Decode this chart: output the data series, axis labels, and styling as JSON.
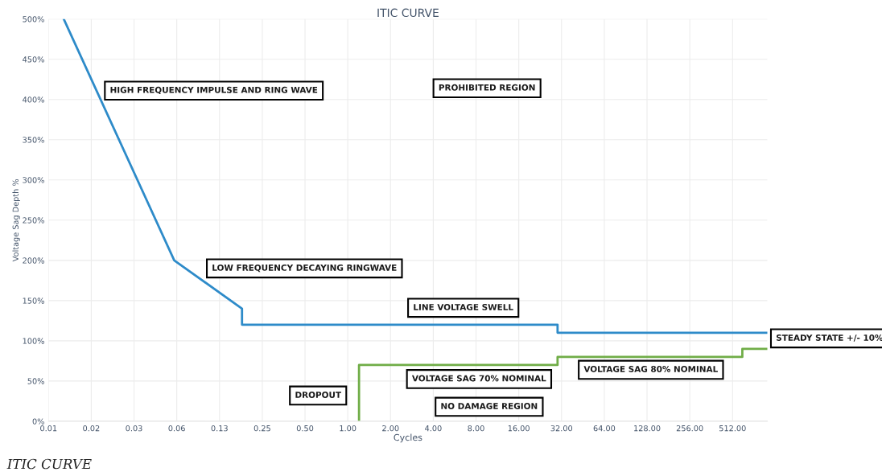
{
  "chart_data": {
    "type": "line",
    "title": "ITIC CURVE",
    "xlabel": "Cycles",
    "ylabel": "Voltage Sag Depth %",
    "log": "x",
    "xlim": [
      0.0078125,
      900
    ],
    "xticks": [
      {
        "value": 0.0078125,
        "label": "0.01"
      },
      {
        "value": 0.015625,
        "label": "0.02"
      },
      {
        "value": 0.03125,
        "label": "0.03"
      },
      {
        "value": 0.0625,
        "label": "0.06"
      },
      {
        "value": 0.125,
        "label": "0.13"
      },
      {
        "value": 0.25,
        "label": "0.25"
      },
      {
        "value": 0.5,
        "label": "0.50"
      },
      {
        "value": 1,
        "label": "1.00"
      },
      {
        "value": 2,
        "label": "2.00"
      },
      {
        "value": 4,
        "label": "4.00"
      },
      {
        "value": 8,
        "label": "8.00"
      },
      {
        "value": 16,
        "label": "16.00"
      },
      {
        "value": 32,
        "label": "32.00"
      },
      {
        "value": 64,
        "label": "64.00"
      },
      {
        "value": 128,
        "label": "128.00"
      },
      {
        "value": 256,
        "label": "256.00"
      },
      {
        "value": 512,
        "label": "512.00"
      }
    ],
    "ylim": [
      0,
      500
    ],
    "yticks": [
      {
        "value": 0,
        "label": "0%"
      },
      {
        "value": 50,
        "label": "50%"
      },
      {
        "value": 100,
        "label": "100%"
      },
      {
        "value": 150,
        "label": "150%"
      },
      {
        "value": 200,
        "label": "200%"
      },
      {
        "value": 250,
        "label": "250%"
      },
      {
        "value": 300,
        "label": "300%"
      },
      {
        "value": 350,
        "label": "350%"
      },
      {
        "value": 400,
        "label": "400%"
      },
      {
        "value": 450,
        "label": "450%"
      },
      {
        "value": 500,
        "label": "500%"
      }
    ],
    "grid": true,
    "legend": false,
    "marker": "none",
    "line_style": "solid",
    "series": [
      {
        "color": "#2e8bc9",
        "x": [
          0.01,
          0.06,
          0.18,
          0.18,
          30,
          30,
          900
        ],
        "values": [
          500,
          200,
          140,
          120,
          120,
          110,
          110
        ]
      },
      {
        "color": "#70ad47",
        "x": [
          1.2,
          1.2,
          30,
          30,
          600,
          600,
          900
        ],
        "values": [
          0,
          70,
          70,
          80,
          80,
          90,
          90
        ]
      }
    ],
    "annotations": [
      "HIGH FREQUENCY IMPULSE AND RING WAVE",
      "PROHIBITED REGION",
      "LOW FREQUENCY DECAYING RINGWAVE",
      "LINE VOLTAGE SWELL",
      "STEADY STATE +/- 10%",
      "VOLTAGE SAG 70% NOMINAL",
      "VOLTAGE SAG 80% NOMINAL",
      "DROPOUT",
      "NO DAMAGE REGION",
      "ITIC CURVE"
    ]
  }
}
